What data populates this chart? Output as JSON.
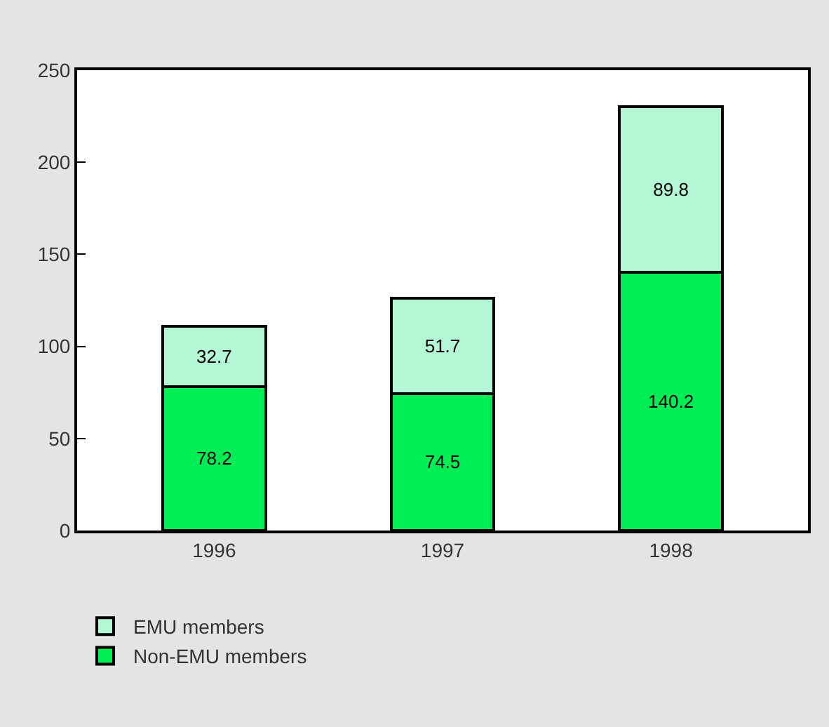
{
  "chart_data": {
    "type": "bar",
    "stacked": true,
    "categories": [
      "1996",
      "1997",
      "1998"
    ],
    "series": [
      {
        "name": "Non-EMU members",
        "color": "#00ee55",
        "values": [
          78.2,
          74.5,
          140.2
        ]
      },
      {
        "name": "EMU members",
        "color": "#b3f7d4",
        "values": [
          32.7,
          51.7,
          89.8
        ]
      }
    ],
    "ylim": [
      0,
      250
    ],
    "yticks": [
      0,
      50,
      100,
      150,
      200,
      250
    ],
    "legend": "bottom left",
    "data_labels": true
  }
}
